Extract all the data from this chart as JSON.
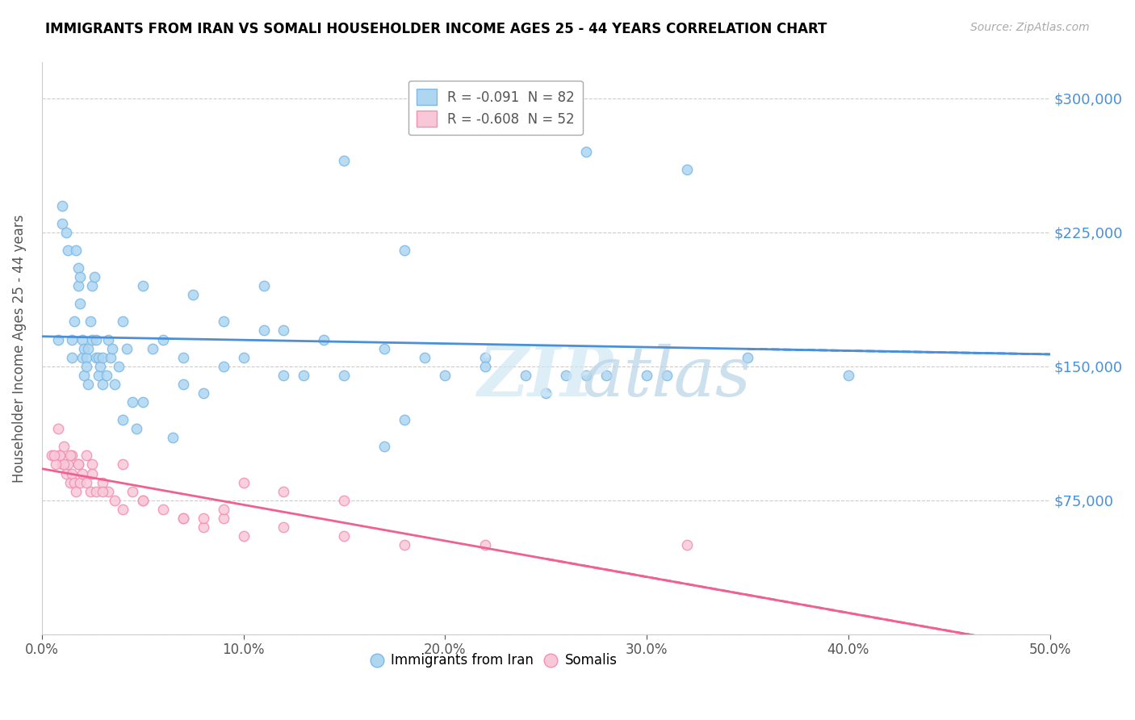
{
  "title": "IMMIGRANTS FROM IRAN VS SOMALI HOUSEHOLDER INCOME AGES 25 - 44 YEARS CORRELATION CHART",
  "source": "Source: ZipAtlas.com",
  "xlabel": "",
  "ylabel": "Householder Income Ages 25 - 44 years",
  "xlim": [
    0.0,
    0.5
  ],
  "ylim": [
    0,
    320000
  ],
  "yticks": [
    0,
    75000,
    150000,
    225000,
    300000
  ],
  "ytick_labels": [
    "",
    "$75,000",
    "$150,000",
    "$225,000",
    "$300,000"
  ],
  "xticks": [
    0.0,
    0.1,
    0.2,
    0.3,
    0.4,
    0.5
  ],
  "xtick_labels": [
    "0.0%",
    "10.0%",
    "20.0%",
    "30.0%",
    "40.0%",
    "50.0%"
  ],
  "iran_color": "#7cb9e8",
  "iran_fill": "#aed6f1",
  "somali_color": "#f48fb1",
  "somali_fill": "#f8c8d8",
  "trend_iran_color": "#4a90d9",
  "trend_somali_color": "#f06090",
  "iran_R": -0.091,
  "iran_N": 82,
  "somali_R": -0.608,
  "somali_N": 52,
  "legend_label_iran": "Immigrants from Iran",
  "legend_label_somali": "Somalis",
  "watermark": "ZIPatlas",
  "iran_scatter_x": [
    0.008,
    0.01,
    0.01,
    0.012,
    0.013,
    0.015,
    0.015,
    0.016,
    0.017,
    0.018,
    0.018,
    0.019,
    0.019,
    0.02,
    0.02,
    0.021,
    0.021,
    0.022,
    0.022,
    0.023,
    0.023,
    0.024,
    0.025,
    0.025,
    0.026,
    0.027,
    0.027,
    0.028,
    0.028,
    0.029,
    0.03,
    0.03,
    0.032,
    0.033,
    0.034,
    0.035,
    0.036,
    0.038,
    0.04,
    0.042,
    0.045,
    0.047,
    0.05,
    0.055,
    0.06,
    0.065,
    0.07,
    0.075,
    0.08,
    0.09,
    0.1,
    0.11,
    0.12,
    0.13,
    0.15,
    0.17,
    0.18,
    0.2,
    0.22,
    0.25,
    0.27,
    0.3,
    0.35,
    0.12,
    0.15,
    0.18,
    0.27,
    0.32,
    0.4,
    0.28,
    0.31,
    0.26,
    0.24,
    0.22,
    0.19,
    0.17,
    0.14,
    0.11,
    0.09,
    0.07,
    0.05,
    0.04
  ],
  "iran_scatter_y": [
    165000,
    230000,
    240000,
    225000,
    215000,
    155000,
    165000,
    175000,
    215000,
    205000,
    195000,
    185000,
    200000,
    165000,
    155000,
    145000,
    160000,
    155000,
    150000,
    140000,
    160000,
    175000,
    165000,
    195000,
    200000,
    155000,
    165000,
    145000,
    155000,
    150000,
    140000,
    155000,
    145000,
    165000,
    155000,
    160000,
    140000,
    150000,
    175000,
    160000,
    130000,
    115000,
    195000,
    160000,
    165000,
    110000,
    155000,
    190000,
    135000,
    150000,
    155000,
    195000,
    145000,
    145000,
    145000,
    105000,
    120000,
    145000,
    155000,
    135000,
    270000,
    145000,
    155000,
    170000,
    265000,
    215000,
    145000,
    260000,
    145000,
    145000,
    145000,
    145000,
    145000,
    150000,
    155000,
    160000,
    165000,
    170000,
    175000,
    140000,
    130000,
    120000
  ],
  "somali_scatter_x": [
    0.005,
    0.008,
    0.009,
    0.01,
    0.011,
    0.012,
    0.013,
    0.014,
    0.015,
    0.015,
    0.016,
    0.017,
    0.018,
    0.019,
    0.02,
    0.022,
    0.024,
    0.025,
    0.027,
    0.03,
    0.033,
    0.036,
    0.04,
    0.045,
    0.05,
    0.06,
    0.07,
    0.08,
    0.09,
    0.1,
    0.12,
    0.15,
    0.18,
    0.22,
    0.32,
    0.1,
    0.12,
    0.15,
    0.07,
    0.08,
    0.09,
    0.05,
    0.04,
    0.03,
    0.025,
    0.022,
    0.018,
    0.014,
    0.011,
    0.009,
    0.007,
    0.006
  ],
  "somali_scatter_y": [
    100000,
    115000,
    100000,
    95000,
    105000,
    90000,
    95000,
    85000,
    100000,
    90000,
    85000,
    80000,
    95000,
    85000,
    90000,
    85000,
    80000,
    95000,
    80000,
    85000,
    80000,
    75000,
    70000,
    80000,
    75000,
    70000,
    65000,
    60000,
    65000,
    55000,
    60000,
    55000,
    50000,
    50000,
    50000,
    85000,
    80000,
    75000,
    65000,
    65000,
    70000,
    75000,
    95000,
    80000,
    90000,
    100000,
    95000,
    100000,
    95000,
    100000,
    95000,
    100000
  ]
}
